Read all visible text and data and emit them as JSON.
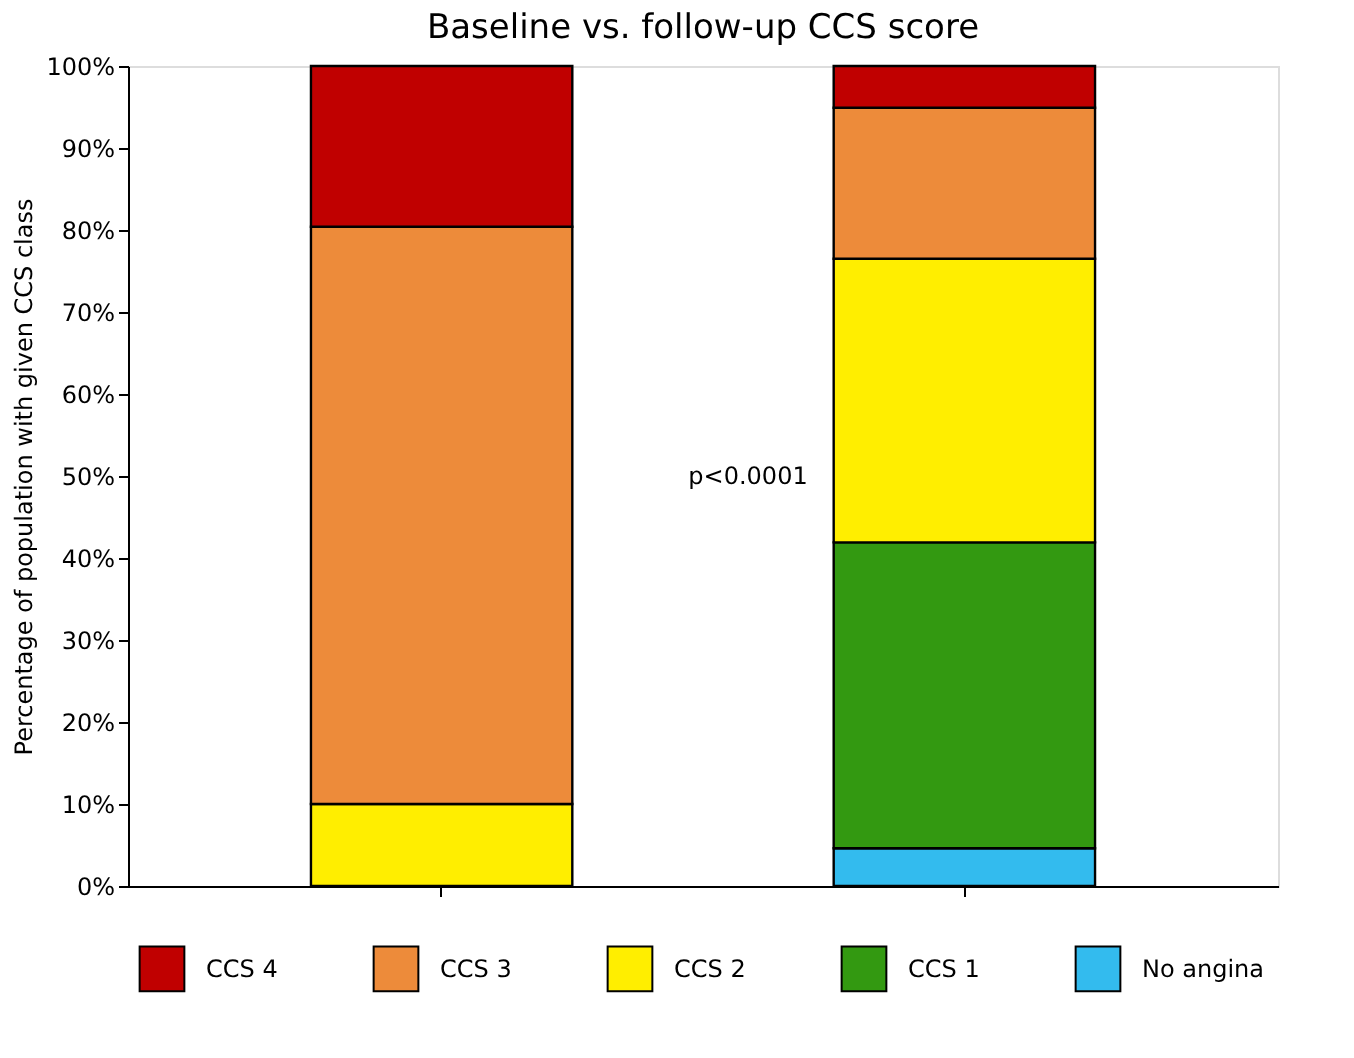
{
  "chart_data": {
    "type": "bar",
    "stacked": true,
    "title": "Baseline vs. follow-up CCS score",
    "ylabel": "Percentage of population with given CCS class",
    "categories": [
      null,
      null
    ],
    "series": [
      {
        "name": "No angina",
        "color": "#33bbee",
        "values": [
          null,
          4.6
        ]
      },
      {
        "name": "CCS 1",
        "color": "#339911",
        "values": [
          null,
          37.3
        ]
      },
      {
        "name": "CCS 2",
        "color": "#ffee00",
        "values": [
          10,
          34.6
        ]
      },
      {
        "name": "CCS 3",
        "color": "#ed8b3a",
        "values": [
          70.4,
          18.4
        ]
      },
      {
        "name": "CCS 4",
        "color": "#c00000",
        "values": [
          19.6,
          5.1
        ]
      }
    ],
    "ylim": [
      0,
      100
    ],
    "yticks": [
      {
        "value": 0,
        "label": "0%"
      },
      {
        "value": 10,
        "label": "10%"
      },
      {
        "value": 20,
        "label": "20%"
      },
      {
        "value": 30,
        "label": "30%"
      },
      {
        "value": 40,
        "label": "40%"
      },
      {
        "value": 50,
        "label": "50%"
      },
      {
        "value": 60,
        "label": "60%"
      },
      {
        "value": 70,
        "label": "70%"
      },
      {
        "value": 80,
        "label": "80%"
      },
      {
        "value": 90,
        "label": "90%"
      },
      {
        "value": 100,
        "label": "100%"
      }
    ],
    "annotations": [
      "p<0.0001"
    ],
    "grid": false,
    "legend": "bottom",
    "tick_labels": "y"
  }
}
